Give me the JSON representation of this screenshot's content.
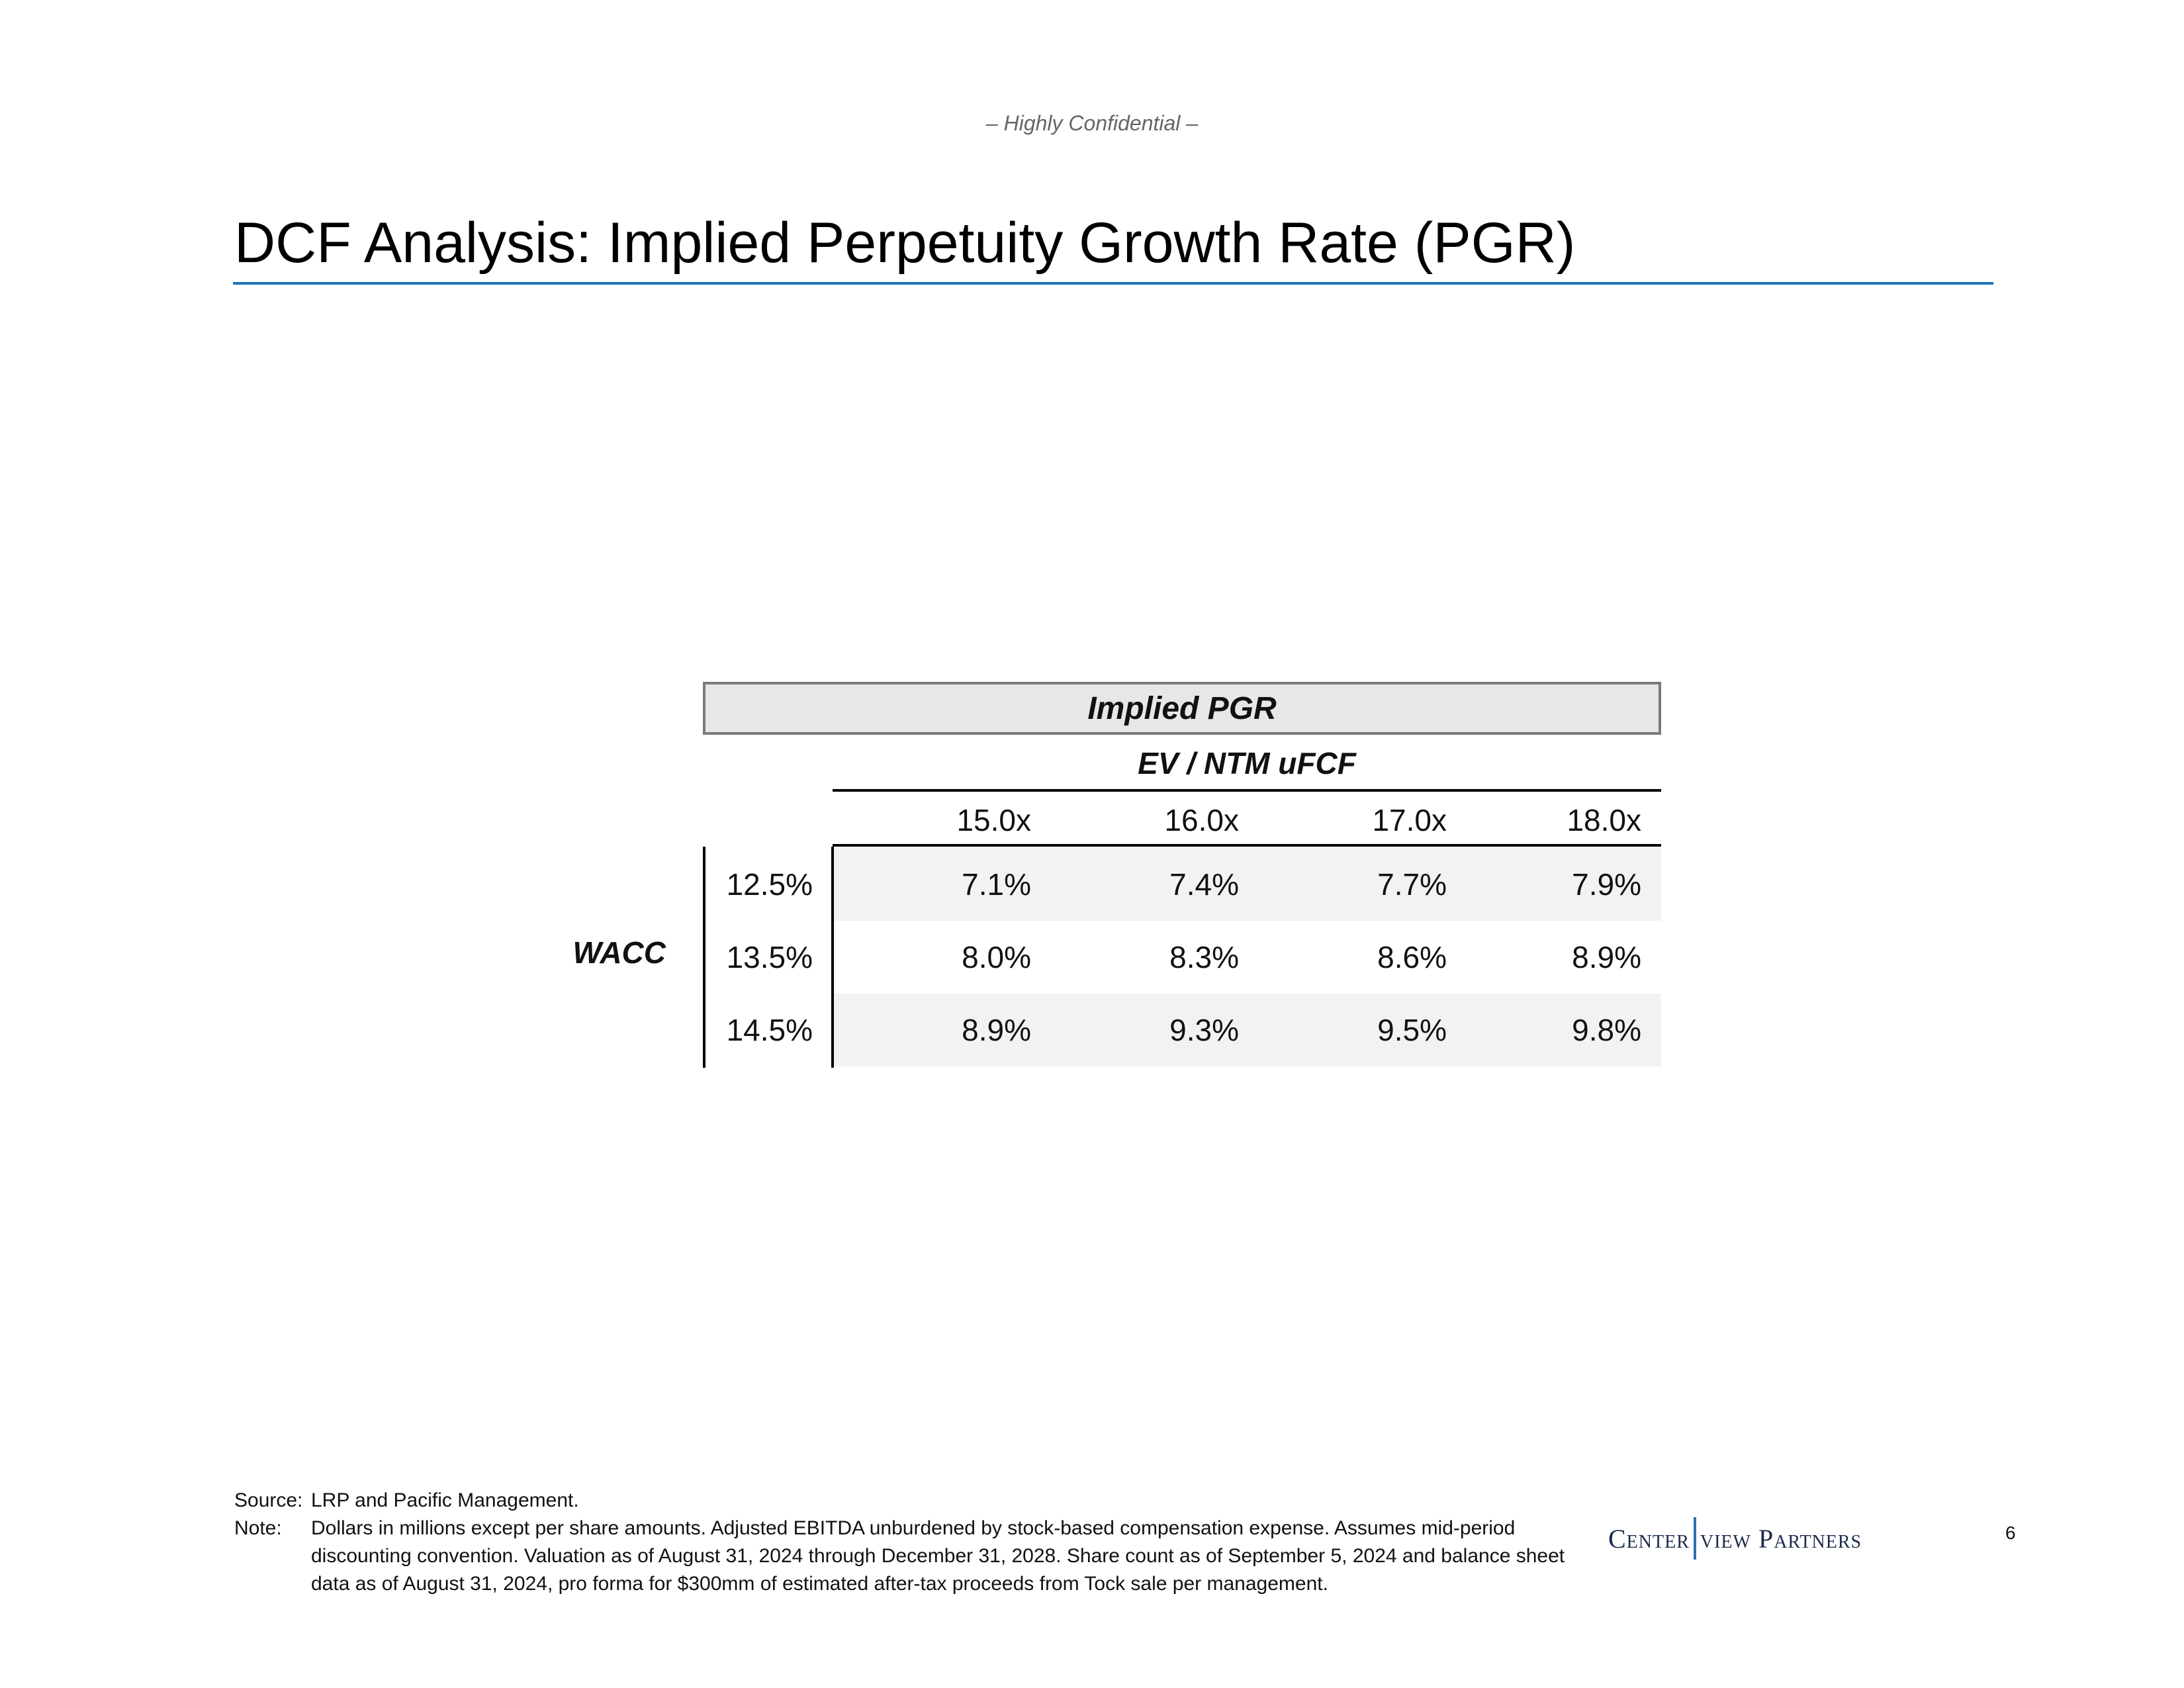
{
  "header": {
    "confidential": "– Highly Confidential –",
    "title": "DCF Analysis: Implied Perpetuity Growth Rate (PGR)"
  },
  "table": {
    "caption": "Implied PGR",
    "column_axis_label": "EV / NTM uFCF",
    "row_axis_label": "WACC",
    "columns": [
      "15.0x",
      "16.0x",
      "17.0x",
      "18.0x"
    ],
    "rows": [
      {
        "wacc": "12.5%",
        "values": [
          "7.1%",
          "7.4%",
          "7.7%",
          "7.9%"
        ]
      },
      {
        "wacc": "13.5%",
        "values": [
          "8.0%",
          "8.3%",
          "8.6%",
          "8.9%"
        ]
      },
      {
        "wacc": "14.5%",
        "values": [
          "8.9%",
          "9.3%",
          "9.5%",
          "9.8%"
        ]
      }
    ]
  },
  "footer": {
    "source_key": "Source:",
    "source_text": "LRP and Pacific Management.",
    "note_key": "Note:",
    "note_text": "Dollars in millions except per share amounts. Adjusted EBITDA unburdened by stock-based compensation expense. Assumes mid-period discounting convention. Valuation as of August 31, 2024 through December 31, 2028. Share count as of September 5, 2024 and balance sheet data as of August 31, 2024, pro forma for $300mm of estimated after-tax proceeds from Tock sale per management.",
    "logo_left": "Center",
    "logo_right": "view Partners",
    "page_number": "6"
  },
  "colors": {
    "title_rule": "#1f72b6",
    "header_fill": "#e7e7e7",
    "row_shade": "#f2f2f2",
    "logo_bar": "#2a6fb0"
  }
}
